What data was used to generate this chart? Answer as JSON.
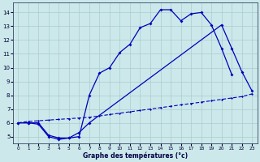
{
  "bg_color": "#cce8ea",
  "grid_color": "#aacccc",
  "line_color": "#0000bb",
  "xlabel": "Graphe des températures (°c)",
  "xlim": [
    -0.5,
    23.5
  ],
  "ylim": [
    4.5,
    14.7
  ],
  "xticks": [
    0,
    1,
    2,
    3,
    4,
    5,
    6,
    7,
    8,
    9,
    10,
    11,
    12,
    13,
    14,
    15,
    16,
    17,
    18,
    19,
    20,
    21,
    22,
    23
  ],
  "yticks": [
    5,
    6,
    7,
    8,
    9,
    10,
    11,
    12,
    13,
    14
  ],
  "curve1_x": [
    0,
    1,
    2,
    3,
    4,
    5,
    6,
    7,
    8,
    9,
    10,
    11,
    12,
    13,
    14,
    15,
    16,
    17,
    18,
    19,
    20,
    21
  ],
  "curve1_y": [
    6,
    6,
    6,
    5.1,
    4.9,
    4.9,
    5.0,
    8.0,
    9.6,
    10.0,
    11.1,
    11.7,
    12.9,
    13.2,
    14.2,
    14.2,
    13.4,
    13.9,
    14.0,
    13.1,
    11.4,
    9.5
  ],
  "curve2_x": [
    0,
    1,
    2,
    3,
    4,
    5,
    6,
    7,
    20,
    21,
    22,
    23
  ],
  "curve2_y": [
    6,
    6,
    5.9,
    5.0,
    4.8,
    4.9,
    5.3,
    6.0,
    13.1,
    11.4,
    9.7,
    8.3
  ],
  "curve3_x": [
    0,
    1,
    2,
    3,
    4,
    5,
    6,
    7,
    8,
    9,
    10,
    11,
    12,
    13,
    14,
    15,
    16,
    17,
    18,
    19,
    20,
    21,
    22,
    23
  ],
  "curve3_y": [
    6.0,
    6.1,
    6.15,
    6.2,
    6.25,
    6.3,
    6.35,
    6.4,
    6.5,
    6.6,
    6.7,
    6.8,
    6.9,
    7.0,
    7.1,
    7.2,
    7.3,
    7.4,
    7.5,
    7.6,
    7.7,
    7.8,
    7.9,
    8.1
  ]
}
